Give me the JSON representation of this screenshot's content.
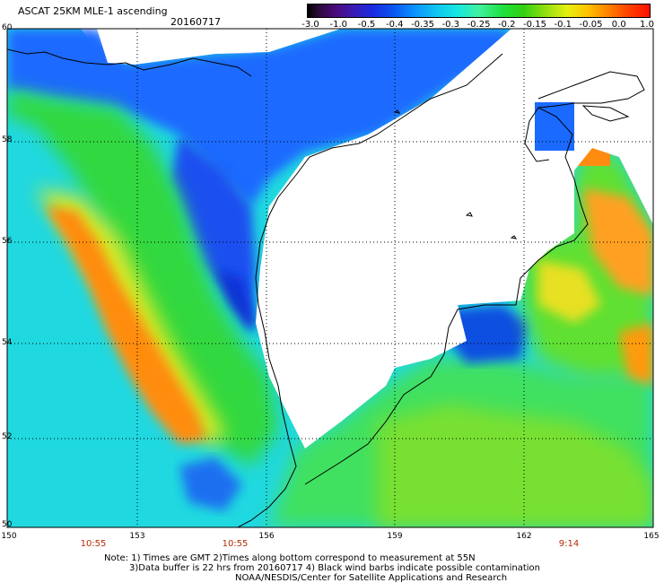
{
  "header": {
    "title": "ASCAT 25KM MLE-1 ascending",
    "date": "20160717"
  },
  "colorbar": {
    "labels": [
      "-3.0",
      "-1.0",
      "-0.5",
      "-0.4",
      "-0.35",
      "-0.3",
      "-0.25",
      "-0.2",
      "-0.15",
      "-0.1",
      "-0.05",
      "0.0",
      "1.0"
    ]
  },
  "axes": {
    "lat_labels": [
      "60",
      "58",
      "56",
      "54",
      "52",
      "50"
    ],
    "lon_labels": [
      "150",
      "153",
      "156",
      "159",
      "162",
      "165"
    ],
    "time_labels": [
      "10:55",
      "10:55",
      "9:14"
    ]
  },
  "footer": {
    "note1": "Note: 1) Times are GMT 2)Times along bottom correspond to measurement at 55N",
    "note2": "3)Data buffer is 22 hrs from 20160717 4) Black wind barbs indicate possible contamination",
    "credit": "NOAA/NESDIS/Center for Satellite Applications and Research"
  }
}
